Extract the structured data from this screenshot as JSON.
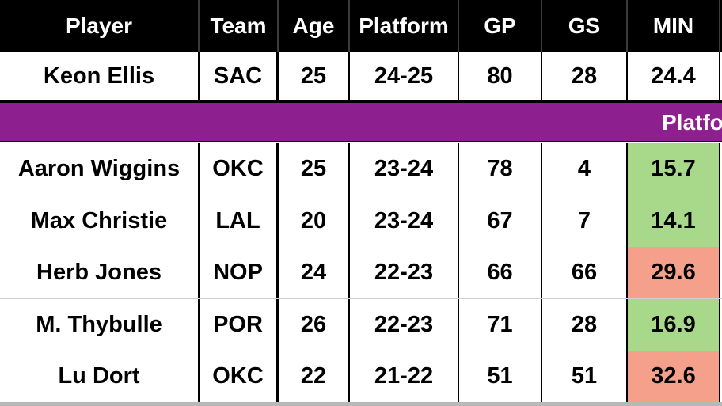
{
  "headers": {
    "player": "Player",
    "team": "Team",
    "age": "Age",
    "platform": "Platform",
    "gp": "GP",
    "gs": "GS",
    "min": "MIN"
  },
  "subject": {
    "player": "Keon Ellis",
    "team": "SAC",
    "age": "25",
    "platform": "24-25",
    "gp": "80",
    "gs": "28",
    "min": "24.4"
  },
  "band_label": "Platfo",
  "comparables": [
    {
      "player": "Aaron Wiggins",
      "team": "OKC",
      "age": "25",
      "platform": "23-24",
      "gp": "78",
      "gs": "4",
      "min": "15.7",
      "min_color": "#a8d98a"
    },
    {
      "player": "Max Christie",
      "team": "LAL",
      "age": "20",
      "platform": "23-24",
      "gp": "67",
      "gs": "7",
      "min": "14.1",
      "min_color": "#a8d98a"
    },
    {
      "player": "Herb Jones",
      "team": "NOP",
      "age": "24",
      "platform": "22-23",
      "gp": "66",
      "gs": "66",
      "min": "29.6",
      "min_color": "#f4a08a"
    },
    {
      "player": "M. Thybulle",
      "team": "POR",
      "age": "26",
      "platform": "22-23",
      "gp": "71",
      "gs": "28",
      "min": "16.9",
      "min_color": "#a8d98a"
    },
    {
      "player": "Lu Dort",
      "team": "OKC",
      "age": "22",
      "platform": "21-22",
      "gp": "51",
      "gs": "51",
      "min": "32.6",
      "min_color": "#f4a08a"
    }
  ],
  "colors": {
    "header_bg": "#000000",
    "band_bg": "#8e1f8e",
    "good": "#a8d98a",
    "bad": "#f4a08a"
  }
}
